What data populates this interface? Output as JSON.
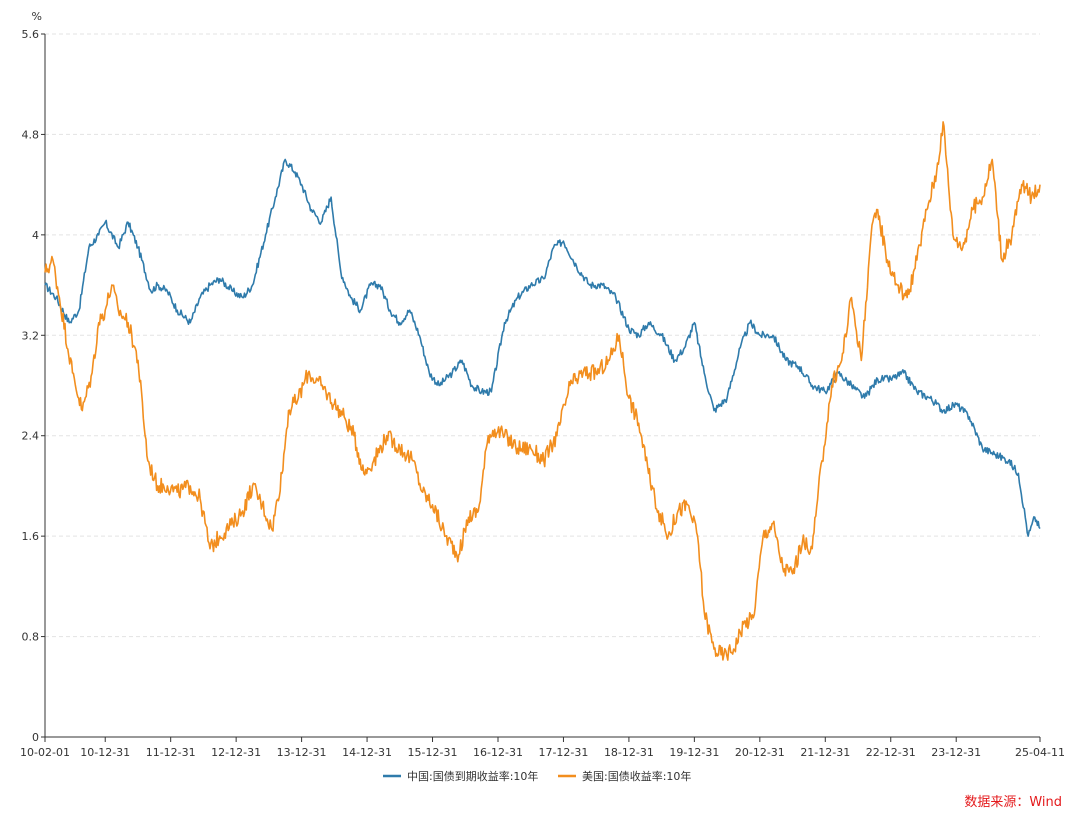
{
  "chart_data": {
    "type": "line",
    "unit": "%",
    "ylim": [
      0,
      5.6
    ],
    "yticks": [
      "0",
      "0.8",
      "1.6",
      "2.4",
      "3.2",
      "4",
      "4.8",
      "5.6"
    ],
    "ytick_values": [
      0,
      0.8,
      1.6,
      2.4,
      3.2,
      4.0,
      4.8,
      5.6
    ],
    "x_start": 2010.08,
    "x_end": 2025.28,
    "xticks": [
      "10-02-01",
      "10-12-31",
      "11-12-31",
      "12-12-31",
      "13-12-31",
      "14-12-31",
      "15-12-31",
      "16-12-31",
      "17-12-31",
      "18-12-31",
      "19-12-31",
      "20-12-31",
      "21-12-31",
      "22-12-31",
      "23-12-31",
      "25-04-11"
    ],
    "xtick_values": [
      2010.08,
      2011.0,
      2012.0,
      2013.0,
      2014.0,
      2015.0,
      2016.0,
      2017.0,
      2018.0,
      2019.0,
      2020.0,
      2021.0,
      2022.0,
      2023.0,
      2024.0,
      2025.28
    ],
    "grid": true,
    "legend_position": "bottom-center",
    "series": [
      {
        "name": "中国:国债到期收益率:10年",
        "color": "#2f7bab",
        "x": [
          2010.08,
          2010.25,
          2010.45,
          2010.6,
          2010.75,
          2010.9,
          2011.0,
          2011.2,
          2011.35,
          2011.5,
          2011.7,
          2011.8,
          2011.95,
          2012.1,
          2012.3,
          2012.45,
          2012.6,
          2012.75,
          2012.95,
          2013.1,
          2013.25,
          2013.45,
          2013.6,
          2013.75,
          2013.9,
          2014.0,
          2014.15,
          2014.3,
          2014.45,
          2014.6,
          2014.75,
          2014.9,
          2015.05,
          2015.2,
          2015.35,
          2015.5,
          2015.65,
          2015.8,
          2015.95,
          2016.1,
          2016.3,
          2016.45,
          2016.6,
          2016.75,
          2016.9,
          2017.1,
          2017.3,
          2017.5,
          2017.7,
          2017.85,
          2018.0,
          2018.2,
          2018.4,
          2018.6,
          2018.8,
          2019.0,
          2019.15,
          2019.3,
          2019.5,
          2019.7,
          2019.85,
          2020.0,
          2020.15,
          2020.3,
          2020.5,
          2020.7,
          2020.85,
          2021.0,
          2021.2,
          2021.4,
          2021.6,
          2021.8,
          2022.0,
          2022.2,
          2022.4,
          2022.6,
          2022.8,
          2023.0,
          2023.2,
          2023.4,
          2023.6,
          2023.8,
          2024.0,
          2024.2,
          2024.4,
          2024.6,
          2024.8,
          2024.95,
          2025.1,
          2025.2,
          2025.28
        ],
        "values": [
          3.6,
          3.5,
          3.3,
          3.4,
          3.9,
          4.0,
          4.1,
          3.9,
          4.1,
          3.9,
          3.55,
          3.6,
          3.55,
          3.4,
          3.3,
          3.5,
          3.6,
          3.65,
          3.55,
          3.5,
          3.6,
          4.0,
          4.3,
          4.6,
          4.5,
          4.4,
          4.2,
          4.1,
          4.3,
          3.7,
          3.5,
          3.4,
          3.6,
          3.6,
          3.4,
          3.3,
          3.4,
          3.2,
          2.9,
          2.8,
          2.9,
          3.0,
          2.8,
          2.75,
          2.75,
          3.3,
          3.5,
          3.6,
          3.65,
          3.9,
          3.95,
          3.75,
          3.6,
          3.6,
          3.5,
          3.25,
          3.2,
          3.3,
          3.2,
          3.0,
          3.1,
          3.3,
          2.9,
          2.6,
          2.7,
          3.1,
          3.3,
          3.2,
          3.2,
          3.0,
          2.95,
          2.8,
          2.75,
          2.9,
          2.8,
          2.7,
          2.85,
          2.85,
          2.9,
          2.75,
          2.7,
          2.6,
          2.65,
          2.55,
          2.3,
          2.25,
          2.2,
          2.1,
          1.6,
          1.75,
          1.66
        ]
      },
      {
        "name": "美国:国债收益率:10年",
        "color": "#f28e1e",
        "x": [
          2010.08,
          2010.2,
          2010.3,
          2010.5,
          2010.65,
          2010.8,
          2010.9,
          2011.0,
          2011.1,
          2011.2,
          2011.35,
          2011.5,
          2011.65,
          2011.8,
          2011.95,
          2012.1,
          2012.3,
          2012.45,
          2012.6,
          2012.75,
          2012.95,
          2013.1,
          2013.25,
          2013.4,
          2013.55,
          2013.7,
          2013.8,
          2013.95,
          2014.1,
          2014.3,
          2014.5,
          2014.65,
          2014.8,
          2014.95,
          2015.1,
          2015.3,
          2015.5,
          2015.7,
          2015.85,
          2016.0,
          2016.2,
          2016.4,
          2016.55,
          2016.7,
          2016.85,
          2016.95,
          2017.1,
          2017.3,
          2017.5,
          2017.7,
          2017.9,
          2018.1,
          2018.3,
          2018.5,
          2018.7,
          2018.85,
          2019.0,
          2019.15,
          2019.3,
          2019.45,
          2019.6,
          2019.75,
          2019.9,
          2020.05,
          2020.15,
          2020.3,
          2020.45,
          2020.6,
          2020.75,
          2020.9,
          2021.05,
          2021.2,
          2021.35,
          2021.5,
          2021.65,
          2021.8,
          2021.95,
          2022.1,
          2022.25,
          2022.4,
          2022.55,
          2022.7,
          2022.8,
          2022.95,
          2023.1,
          2023.25,
          2023.4,
          2023.55,
          2023.7,
          2023.8,
          2023.95,
          2024.1,
          2024.25,
          2024.4,
          2024.55,
          2024.7,
          2024.85,
          2025.0,
          2025.15,
          2025.28
        ],
        "values": [
          3.7,
          3.8,
          3.5,
          2.9,
          2.6,
          2.9,
          3.3,
          3.4,
          3.6,
          3.4,
          3.3,
          3.0,
          2.2,
          2.0,
          2.0,
          1.95,
          2.0,
          1.9,
          1.5,
          1.6,
          1.7,
          1.8,
          2.0,
          1.85,
          1.65,
          2.1,
          2.6,
          2.7,
          2.9,
          2.8,
          2.65,
          2.55,
          2.4,
          2.1,
          2.2,
          2.4,
          2.3,
          2.2,
          1.95,
          1.85,
          1.6,
          1.45,
          1.75,
          1.8,
          2.4,
          2.45,
          2.4,
          2.3,
          2.3,
          2.2,
          2.4,
          2.8,
          2.9,
          2.9,
          3.0,
          3.2,
          2.7,
          2.5,
          2.1,
          1.8,
          1.6,
          1.8,
          1.85,
          1.6,
          1.0,
          0.7,
          0.65,
          0.7,
          0.9,
          0.95,
          1.6,
          1.7,
          1.35,
          1.3,
          1.55,
          1.5,
          2.2,
          2.8,
          3.0,
          3.5,
          3.0,
          4.0,
          4.2,
          3.8,
          3.6,
          3.5,
          3.8,
          4.2,
          4.5,
          4.9,
          4.0,
          3.9,
          4.2,
          4.3,
          4.6,
          3.8,
          4.0,
          4.4,
          4.3,
          4.4
        ]
      }
    ]
  },
  "source": {
    "label": "数据来源：Wind",
    "color": "#e41a1c"
  }
}
